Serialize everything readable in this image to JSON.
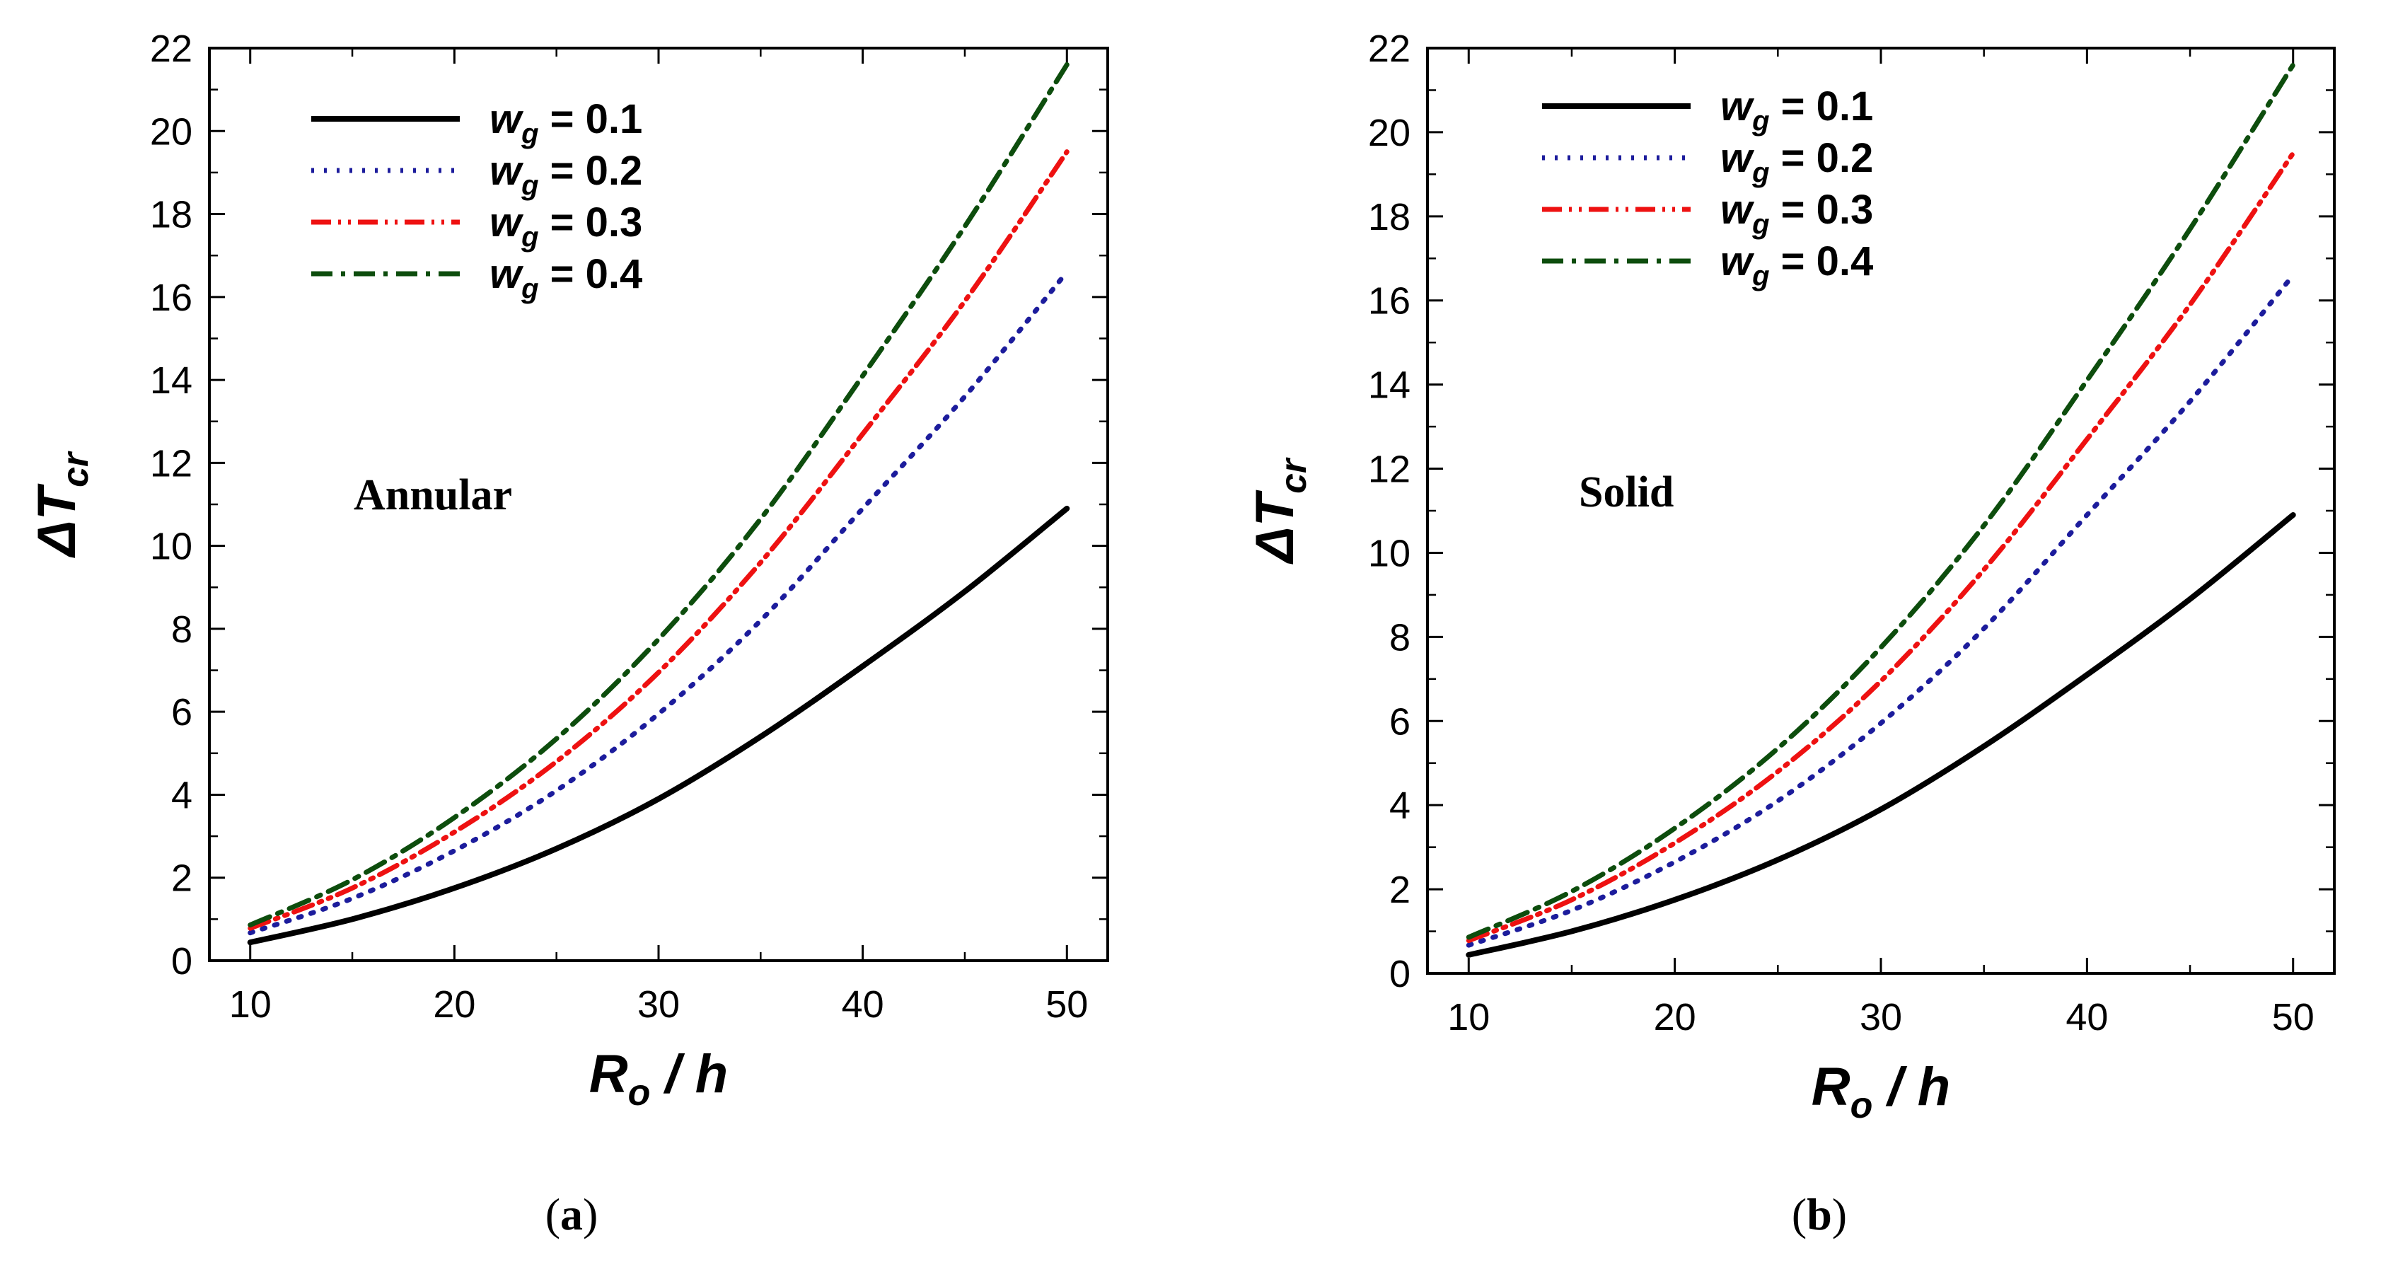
{
  "chart_data": [
    {
      "type": "line",
      "panel_label": "a",
      "annotation": "Annular",
      "xlabel": {
        "symbol": "R",
        "subscript": "o",
        "rest": " / h"
      },
      "ylabel": {
        "symbol": "ΔT",
        "subscript": "cr"
      },
      "xlim": [
        8,
        52
      ],
      "ylim": [
        0,
        22
      ],
      "xticks": [
        10,
        20,
        30,
        40,
        50
      ],
      "yticks": [
        0,
        2,
        4,
        6,
        8,
        10,
        12,
        14,
        16,
        18,
        20,
        22
      ],
      "x": [
        10,
        15,
        20,
        25,
        30,
        35,
        40,
        45,
        50
      ],
      "series": [
        {
          "name": "w_g = 0.1",
          "legend_sym": "w",
          "legend_sub": "g",
          "legend_val": " = 0.1",
          "color": "#000000",
          "dash": "solid",
          "values": [
            0.44,
            1.0,
            1.75,
            2.7,
            3.9,
            5.4,
            7.1,
            8.9,
            10.9
          ]
        },
        {
          "name": "w_g = 0.2",
          "legend_sym": "w",
          "legend_sub": "g",
          "legend_val": " = 0.2",
          "color": "#1c1c9c",
          "dash": "dotted",
          "values": [
            0.67,
            1.5,
            2.65,
            4.1,
            5.95,
            8.2,
            10.9,
            13.6,
            16.6
          ]
        },
        {
          "name": "w_g = 0.3",
          "legend_sym": "w",
          "legend_sub": "g",
          "legend_val": " = 0.3",
          "color": "#ee1111",
          "dash": "dashdotdot",
          "values": [
            0.78,
            1.75,
            3.1,
            4.8,
            6.95,
            9.6,
            12.7,
            15.9,
            19.5
          ]
        },
        {
          "name": "w_g = 0.4",
          "legend_sym": "w",
          "legend_sub": "g",
          "legend_val": " = 0.4",
          "color": "#0d4d0d",
          "dash": "dashdot",
          "values": [
            0.86,
            1.95,
            3.45,
            5.35,
            7.75,
            10.65,
            14.1,
            17.7,
            21.6
          ]
        }
      ]
    },
    {
      "type": "line",
      "panel_label": "b",
      "annotation": "Solid",
      "xlabel": {
        "symbol": "R",
        "subscript": "o",
        "rest": " / h"
      },
      "ylabel": {
        "symbol": "ΔT",
        "subscript": "cr"
      },
      "xlim": [
        8,
        52
      ],
      "ylim": [
        0,
        22
      ],
      "xticks": [
        10,
        20,
        30,
        40,
        50
      ],
      "yticks": [
        0,
        2,
        4,
        6,
        8,
        10,
        12,
        14,
        16,
        18,
        20,
        22
      ],
      "x": [
        10,
        15,
        20,
        25,
        30,
        35,
        40,
        45,
        50
      ],
      "series": [
        {
          "name": "w_g = 0.1",
          "legend_sym": "w",
          "legend_sub": "g",
          "legend_val": " = 0.1",
          "color": "#000000",
          "dash": "solid",
          "values": [
            0.44,
            1.0,
            1.75,
            2.7,
            3.9,
            5.4,
            7.1,
            8.9,
            10.9
          ]
        },
        {
          "name": "w_g = 0.2",
          "legend_sym": "w",
          "legend_sub": "g",
          "legend_val": " = 0.2",
          "color": "#1c1c9c",
          "dash": "dotted",
          "values": [
            0.67,
            1.5,
            2.65,
            4.1,
            5.95,
            8.2,
            10.9,
            13.6,
            16.6
          ]
        },
        {
          "name": "w_g = 0.3",
          "legend_sym": "w",
          "legend_sub": "g",
          "legend_val": " = 0.3",
          "color": "#ee1111",
          "dash": "dashdotdot",
          "values": [
            0.78,
            1.75,
            3.1,
            4.8,
            6.95,
            9.6,
            12.7,
            15.9,
            19.5
          ]
        },
        {
          "name": "w_g = 0.4",
          "legend_sym": "w",
          "legend_sub": "g",
          "legend_val": " = 0.4",
          "color": "#0d4d0d",
          "dash": "dashdot",
          "values": [
            0.86,
            1.95,
            3.45,
            5.35,
            7.75,
            10.65,
            14.1,
            17.7,
            21.6
          ]
        }
      ]
    }
  ]
}
